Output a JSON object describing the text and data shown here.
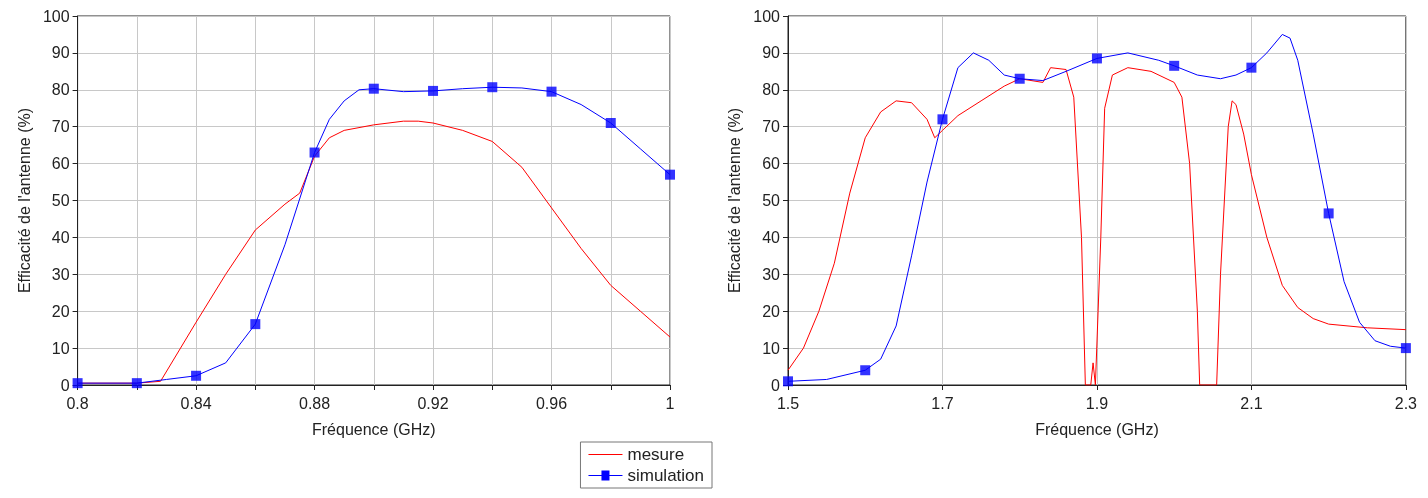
{
  "chart_data": [
    {
      "type": "line",
      "xlabel": "Fréquence (GHz)",
      "ylabel": "Efficacité de l'antenne (%)",
      "xlim": [
        0.8,
        1
      ],
      "ylim": [
        0,
        100
      ],
      "xticks": [
        0.8,
        {
          "value": 0.82,
          "label": null
        },
        0.84,
        {
          "value": 0.86,
          "label": null
        },
        0.88,
        {
          "value": 0.9,
          "label": null
        },
        0.92,
        {
          "value": 0.94,
          "label": null
        },
        0.96,
        {
          "value": 0.98,
          "label": null
        },
        1
      ],
      "yticks": [
        0,
        10,
        20,
        30,
        40,
        50,
        60,
        70,
        80,
        90,
        100
      ],
      "grid": true,
      "legend": "bottom right",
      "line_style": "solid",
      "series": [
        {
          "name": "mesure",
          "color": "#ff0000",
          "marker": "none",
          "x": [
            0.8,
            0.82,
            0.828,
            0.84,
            0.85,
            0.86,
            0.87,
            0.875,
            0.88,
            0.885,
            0.89,
            0.9,
            0.91,
            0.915,
            0.92,
            0.93,
            0.94,
            0.95,
            0.96,
            0.97,
            0.98,
            0.99,
            1.0
          ],
          "values": [
            0.5,
            0.5,
            1,
            17,
            30,
            42,
            49,
            52,
            62,
            67,
            69,
            70.5,
            71.5,
            71.5,
            71,
            69,
            66,
            59,
            48,
            37,
            27,
            20,
            13
          ]
        },
        {
          "name": "simulation",
          "color": "#0000ff",
          "marker": "none",
          "x": [
            0.8,
            0.82,
            0.83,
            0.84,
            0.85,
            0.86,
            0.87,
            0.88,
            0.885,
            0.89,
            0.895,
            0.9,
            0.91,
            0.92,
            0.93,
            0.94,
            0.95,
            0.96,
            0.97,
            0.98,
            0.99,
            1.0
          ],
          "values": [
            0.5,
            0.5,
            1.5,
            2.5,
            6,
            16.5,
            38,
            63,
            72,
            77,
            80,
            80.3,
            79.5,
            79.7,
            80.3,
            80.7,
            80.5,
            79.5,
            76,
            71,
            64,
            57
          ]
        },
        {
          "type": "scatter",
          "color": "#0000ff",
          "marker": "square",
          "x": [
            0.8,
            0.82,
            0.84,
            0.86,
            0.88,
            0.9,
            0.92,
            0.94,
            0.96,
            0.98,
            1.0
          ],
          "values": [
            0.5,
            0.5,
            2.5,
            16.5,
            63,
            80.3,
            79.7,
            80.7,
            79.5,
            71,
            57
          ]
        }
      ]
    },
    {
      "type": "line",
      "xlabel": "Fréquence (GHz)",
      "ylabel": "Efficacité de l'antenne (%)",
      "xlim": [
        1.5,
        2.3
      ],
      "ylim": [
        0,
        100
      ],
      "xticks": [
        1.5,
        1.7,
        1.9,
        2.1,
        2.3
      ],
      "yticks": [
        0,
        10,
        20,
        30,
        40,
        50,
        60,
        70,
        80,
        90,
        100
      ],
      "grid": true,
      "line_style": "solid",
      "series": [
        {
          "color": "#ff0000",
          "marker": "none",
          "x": [
            1.5,
            1.52,
            1.54,
            1.56,
            1.58,
            1.6,
            1.62,
            1.64,
            1.66,
            1.68,
            1.69,
            1.7,
            1.72,
            1.75,
            1.78,
            1.8,
            1.83,
            1.84,
            1.86,
            1.87,
            1.88,
            1.885,
            1.892,
            1.895,
            1.898,
            1.905,
            1.91,
            1.92,
            1.94,
            1.97,
            2.0,
            2.01,
            2.02,
            2.03,
            2.033,
            2.055,
            2.06,
            2.07,
            2.075,
            2.08,
            2.09,
            2.1,
            2.12,
            2.14,
            2.16,
            2.18,
            2.2,
            2.25,
            2.3
          ],
          "values": [
            4,
            10,
            20,
            33,
            52,
            67,
            74,
            77,
            76.5,
            72,
            67,
            69,
            73,
            77,
            81,
            83,
            82,
            86,
            85.5,
            78,
            40,
            0,
            0,
            6,
            0,
            40,
            75,
            84,
            86,
            85,
            82,
            78,
            60,
            20,
            0,
            0,
            30,
            70,
            77,
            76,
            68,
            57,
            40,
            27,
            21,
            18,
            16.5,
            15.5,
            15
          ]
        },
        {
          "color": "#0000ff",
          "marker": "none",
          "x": [
            1.5,
            1.55,
            1.6,
            1.62,
            1.64,
            1.66,
            1.68,
            1.7,
            1.72,
            1.74,
            1.76,
            1.78,
            1.8,
            1.83,
            1.86,
            1.9,
            1.94,
            1.98,
            2.0,
            2.03,
            2.06,
            2.08,
            2.1,
            2.12,
            2.14,
            2.15,
            2.16,
            2.18,
            2.2,
            2.22,
            2.24,
            2.26,
            2.28,
            2.3
          ],
          "values": [
            1,
            1.5,
            4,
            7,
            16,
            35,
            55,
            72,
            86,
            90,
            88,
            84,
            83,
            82.5,
            85,
            88.5,
            90,
            88,
            86.5,
            84,
            83,
            84,
            86,
            90,
            95,
            94,
            88,
            68,
            46.5,
            28,
            17,
            12,
            10.5,
            10
          ]
        },
        {
          "type": "scatter",
          "color": "#0000ff",
          "marker": "square",
          "x": [
            1.5,
            1.6,
            1.7,
            1.8,
            1.9,
            2.0,
            2.1,
            2.2,
            2.3
          ],
          "values": [
            1,
            4,
            72,
            83,
            88.5,
            86.5,
            86,
            46.5,
            10
          ]
        }
      ]
    }
  ]
}
